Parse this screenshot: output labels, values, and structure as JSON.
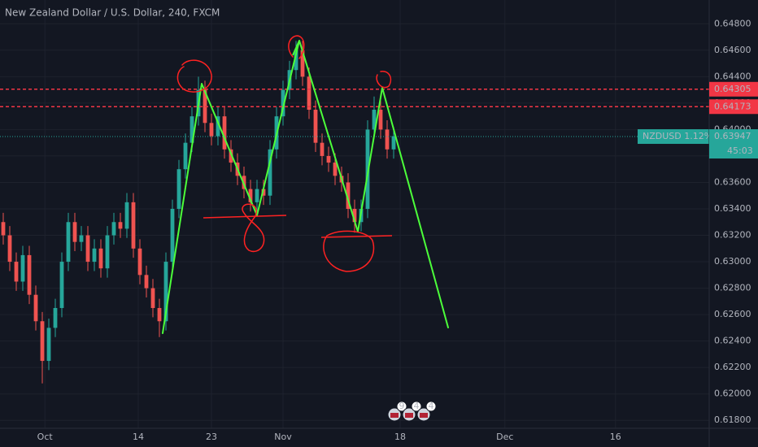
{
  "chart_data": {
    "type": "candlestick",
    "title": "New Zealand Dollar / U.S. Dollar, 240, FXCM",
    "up_color": "#26a69a",
    "down_color": "#ef5350",
    "open": [
      0.633,
      0.632,
      0.63,
      0.6285,
      0.6305,
      0.6275,
      0.6255,
      0.6225,
      0.625,
      0.6265,
      0.63,
      0.633,
      0.6315,
      0.632,
      0.63,
      0.631,
      0.6295,
      0.632,
      0.633,
      0.6325,
      0.6345,
      0.631,
      0.629,
      0.628,
      0.6265,
      0.6255,
      0.63,
      0.634,
      0.637,
      0.639,
      0.641,
      0.643,
      0.6405,
      0.6395,
      0.641,
      0.6385,
      0.6375,
      0.6365,
      0.6355,
      0.6345,
      0.6355,
      0.635,
      0.6385,
      0.641,
      0.643,
      0.6445,
      0.646,
      0.644,
      0.6415,
      0.639,
      0.638,
      0.6375,
      0.6365,
      0.636,
      0.634,
      0.633,
      0.634,
      0.64,
      0.6415,
      0.64,
      0.6385
    ],
    "high": [
      0.6337,
      0.6327,
      0.6307,
      0.6312,
      0.6312,
      0.6282,
      0.6262,
      0.6257,
      0.6272,
      0.6307,
      0.6337,
      0.6337,
      0.6327,
      0.6327,
      0.6317,
      0.6317,
      0.6327,
      0.6337,
      0.6337,
      0.6352,
      0.6352,
      0.6317,
      0.6297,
      0.6287,
      0.6272,
      0.6307,
      0.6347,
      0.6377,
      0.6397,
      0.6417,
      0.644,
      0.6437,
      0.6412,
      0.6417,
      0.6417,
      0.6392,
      0.6382,
      0.6372,
      0.6362,
      0.6362,
      0.6362,
      0.6392,
      0.6417,
      0.6437,
      0.6452,
      0.6467,
      0.6467,
      0.6447,
      0.6422,
      0.6397,
      0.6387,
      0.6382,
      0.6372,
      0.6367,
      0.6347,
      0.6347,
      0.6407,
      0.6425,
      0.6422,
      0.6407,
      0.6402
    ],
    "low": [
      0.6313,
      0.6293,
      0.6278,
      0.6278,
      0.6268,
      0.6248,
      0.6208,
      0.6218,
      0.6243,
      0.6258,
      0.6293,
      0.6308,
      0.6308,
      0.6293,
      0.6293,
      0.6288,
      0.6288,
      0.6313,
      0.6318,
      0.6318,
      0.6303,
      0.6283,
      0.6273,
      0.6258,
      0.6243,
      0.6248,
      0.6293,
      0.6333,
      0.6363,
      0.6383,
      0.6403,
      0.6398,
      0.6388,
      0.6388,
      0.6378,
      0.6368,
      0.6358,
      0.6348,
      0.6338,
      0.6338,
      0.6343,
      0.6343,
      0.6378,
      0.6403,
      0.6423,
      0.6438,
      0.6433,
      0.6408,
      0.6383,
      0.6373,
      0.6368,
      0.6358,
      0.6353,
      0.6333,
      0.6322,
      0.6323,
      0.6333,
      0.6393,
      0.6393,
      0.6378,
      0.6378
    ],
    "close": [
      0.632,
      0.63,
      0.6285,
      0.6305,
      0.6275,
      0.6255,
      0.6225,
      0.625,
      0.6265,
      0.63,
      0.633,
      0.6315,
      0.632,
      0.63,
      0.631,
      0.6295,
      0.632,
      0.633,
      0.6325,
      0.6345,
      0.631,
      0.629,
      0.628,
      0.6265,
      0.6255,
      0.63,
      0.634,
      0.637,
      0.639,
      0.641,
      0.643,
      0.6405,
      0.6395,
      0.641,
      0.6385,
      0.6375,
      0.6365,
      0.6355,
      0.6345,
      0.6355,
      0.635,
      0.6385,
      0.641,
      0.643,
      0.6445,
      0.646,
      0.644,
      0.6415,
      0.639,
      0.638,
      0.6375,
      0.6365,
      0.636,
      0.634,
      0.633,
      0.634,
      0.64,
      0.6415,
      0.64,
      0.6385,
      0.6395
    ],
    "xlim": [
      -0.5,
      108.5
    ],
    "xticks": [
      {
        "value": 6.4,
        "label": "Oct"
      },
      {
        "value": 20.75,
        "label": "14"
      },
      {
        "value": 32,
        "label": "23"
      },
      {
        "value": 43,
        "label": "Nov"
      },
      {
        "value": 61,
        "label": "18"
      },
      {
        "value": 77.1,
        "label": "Dec"
      },
      {
        "value": 94.1,
        "label": "16"
      }
    ],
    "ylim": [
      0.6174,
      0.6498
    ],
    "yticks": [
      {
        "value": 0.618,
        "label": "0.61800"
      },
      {
        "value": 0.62,
        "label": "0.62000"
      },
      {
        "value": 0.622,
        "label": "0.62200"
      },
      {
        "value": 0.624,
        "label": "0.62400"
      },
      {
        "value": 0.626,
        "label": "0.62600"
      },
      {
        "value": 0.628,
        "label": "0.62800"
      },
      {
        "value": 0.63,
        "label": "0.63000"
      },
      {
        "value": 0.632,
        "label": "0.63200"
      },
      {
        "value": 0.634,
        "label": "0.63400"
      },
      {
        "value": 0.636,
        "label": "0.63600"
      },
      {
        "value": 0.638,
        "label": "0.63800"
      },
      {
        "value": 0.64,
        "label": "0.64000"
      },
      {
        "value": 0.642,
        "label": "0.64200"
      },
      {
        "value": 0.644,
        "label": "0.64400"
      },
      {
        "value": 0.646,
        "label": "0.64600"
      },
      {
        "value": 0.648,
        "label": "0.64800"
      }
    ],
    "grid": true,
    "levels": [
      {
        "value": 0.64305,
        "color": "#f23645"
      },
      {
        "value": 0.64173,
        "color": "#f23645"
      }
    ],
    "last_price": 0.63947,
    "last_price_color": "#26a69a",
    "symbol_label": "NZDUSD 1.12%",
    "countdown": "45:03",
    "event_badges": [
      9,
      4,
      4
    ]
  }
}
